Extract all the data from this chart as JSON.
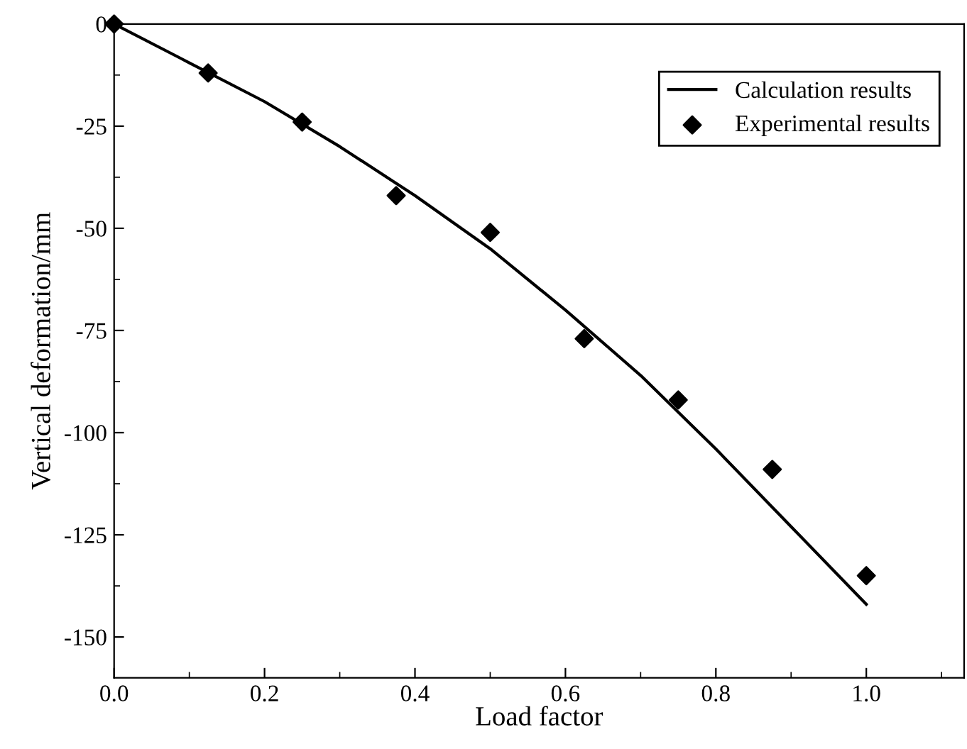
{
  "chart_data": {
    "type": "line",
    "xlabel": "Load factor",
    "ylabel": "Vertical deformation/mm",
    "xlim": [
      0,
      1.13
    ],
    "ylim": [
      -160,
      0
    ],
    "xticks": [
      {
        "value": 0,
        "label": "0.0"
      },
      0.2,
      0.4,
      0.6,
      0.8,
      {
        "value": 1,
        "label": "1.0"
      }
    ],
    "yticks": [
      -150,
      -125,
      -100,
      -75,
      -50,
      -25,
      0
    ],
    "grid": false,
    "legend": "top right",
    "series": [
      {
        "name": "Calculation results",
        "color": "#000000",
        "marker": "none",
        "line_style": "solid",
        "x": [
          0,
          0.1,
          0.2,
          0.3,
          0.4,
          0.5,
          0.6,
          0.7,
          0.8,
          0.9,
          1.0
        ],
        "values": [
          0,
          -9.5,
          -19,
          -30,
          -42,
          -55,
          -70,
          -86,
          -104,
          -123,
          -142
        ]
      },
      {
        "name": "Experimental results",
        "type": "scatter",
        "color": "#000000",
        "marker": "diamond",
        "x": [
          0,
          0.125,
          0.25,
          0.375,
          0.5,
          0.625,
          0.75,
          0.875,
          1.0
        ],
        "values": [
          0,
          -12,
          -24,
          -42,
          -51,
          -77,
          -92,
          -109,
          -135
        ]
      }
    ]
  }
}
